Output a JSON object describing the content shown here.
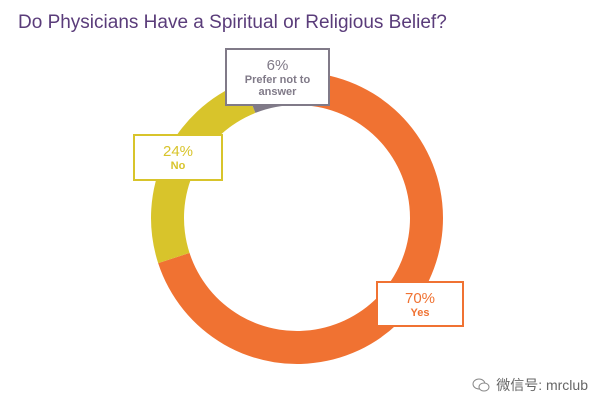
{
  "chart_data": {
    "type": "donut",
    "title": "Do Physicians Have a Spiritual or Religious Belief?",
    "categories": [
      "Yes",
      "No",
      "Prefer not to answer"
    ],
    "values": [
      70,
      24,
      6
    ],
    "value_labels": [
      "70%",
      "24%",
      "6%"
    ],
    "colors": [
      "#f07232",
      "#d8c42b",
      "#807a88"
    ],
    "watermark": "微信号: mrclub"
  }
}
